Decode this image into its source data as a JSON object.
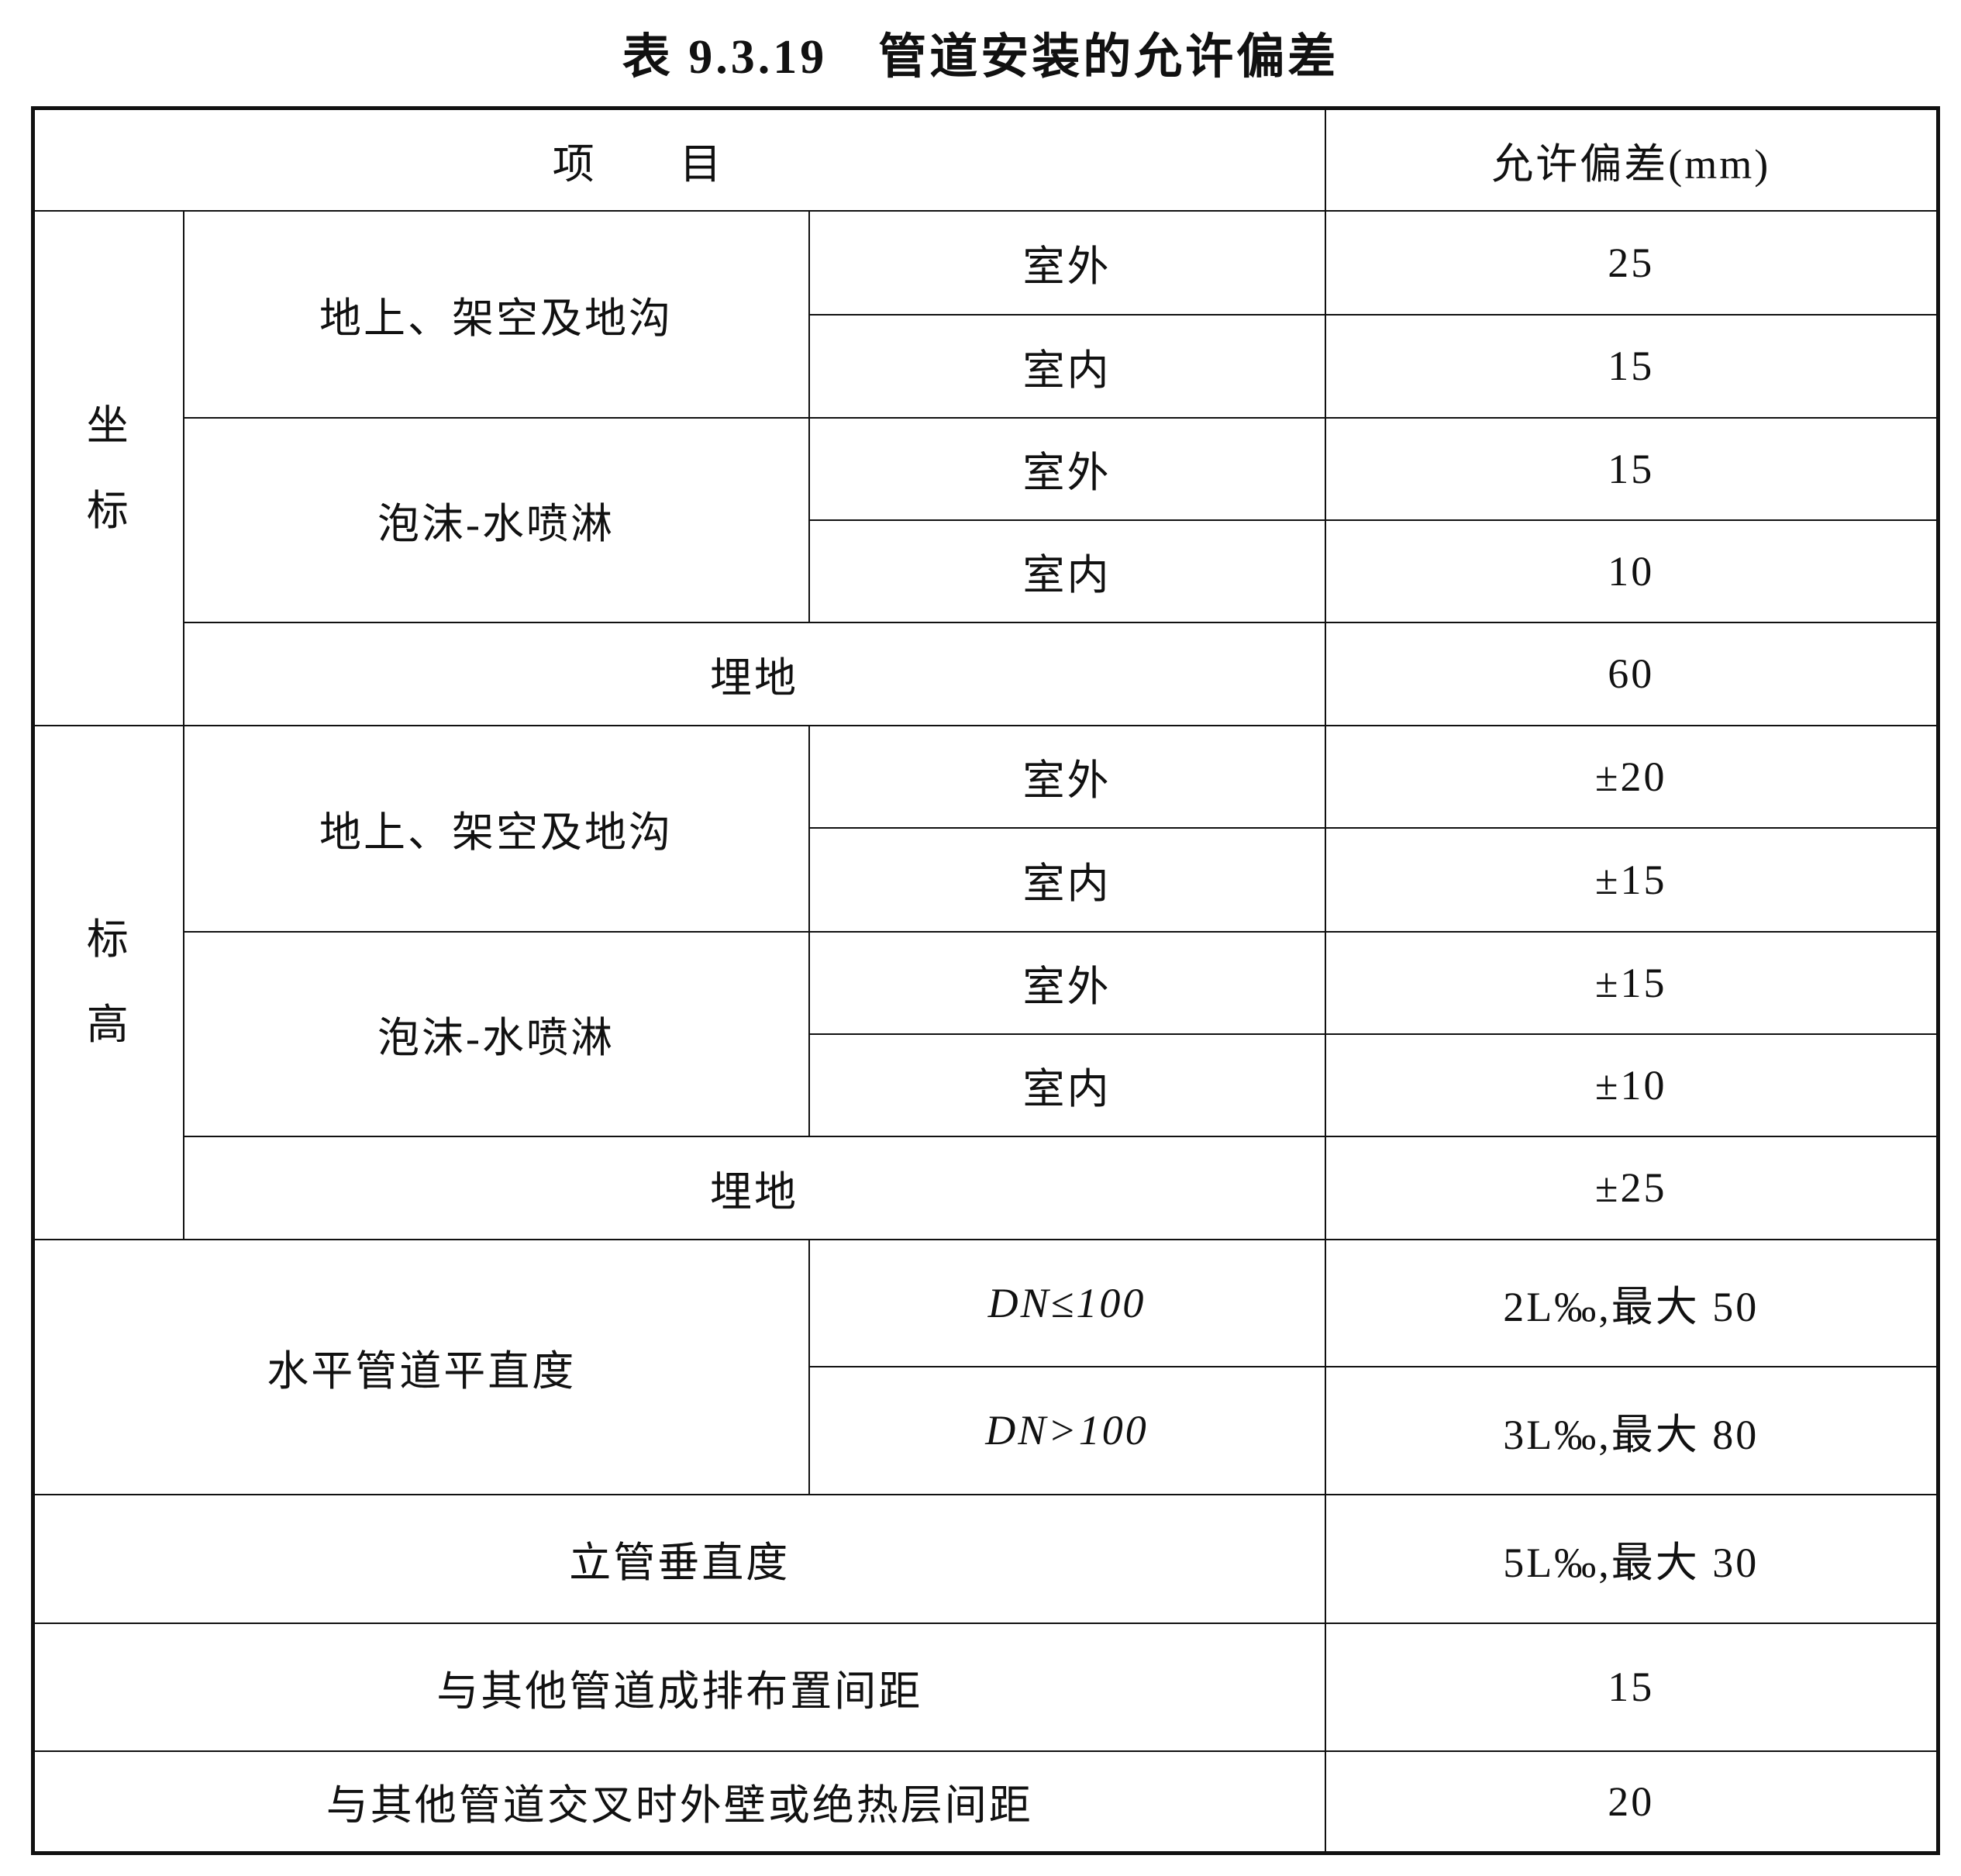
{
  "title": "表 9.3.19　管道安装的允许偏差",
  "header": {
    "item": "项目",
    "tolerance": "允许偏差(mm)"
  },
  "groups": [
    {
      "name_chars": [
        "坐",
        "标"
      ],
      "subgroups": [
        {
          "name": "地上、架空及地沟",
          "rows": [
            {
              "loc": "室外",
              "val": "25"
            },
            {
              "loc": "室内",
              "val": "15"
            }
          ]
        },
        {
          "name": "泡沫-水喷淋",
          "rows": [
            {
              "loc": "室外",
              "val": "15"
            },
            {
              "loc": "室内",
              "val": "10"
            }
          ]
        }
      ],
      "buried": {
        "name": "埋地",
        "val": "60"
      }
    },
    {
      "name_chars": [
        "标",
        "高"
      ],
      "subgroups": [
        {
          "name": "地上、架空及地沟",
          "rows": [
            {
              "loc": "室外",
              "val": "±20"
            },
            {
              "loc": "室内",
              "val": "±15"
            }
          ]
        },
        {
          "name": "泡沫-水喷淋",
          "rows": [
            {
              "loc": "室外",
              "val": "±15"
            },
            {
              "loc": "室内",
              "val": "±10"
            }
          ]
        }
      ],
      "buried": {
        "name": "埋地",
        "val": "±25"
      }
    }
  ],
  "horizontal": {
    "name": "水平管道平直度",
    "rows": [
      {
        "cond": "DN≤100",
        "val": "2L‰,最大 50"
      },
      {
        "cond": "DN>100",
        "val": "3L‰,最大 80"
      }
    ]
  },
  "vertical": {
    "name": "立管垂直度",
    "val": "5L‰,最大 30"
  },
  "row_spacing": {
    "name": "与其他管道成排布置间距",
    "val": "15"
  },
  "cross_spacing": {
    "name": "与其他管道交叉时外壁或绝热层间距",
    "val": "20"
  }
}
